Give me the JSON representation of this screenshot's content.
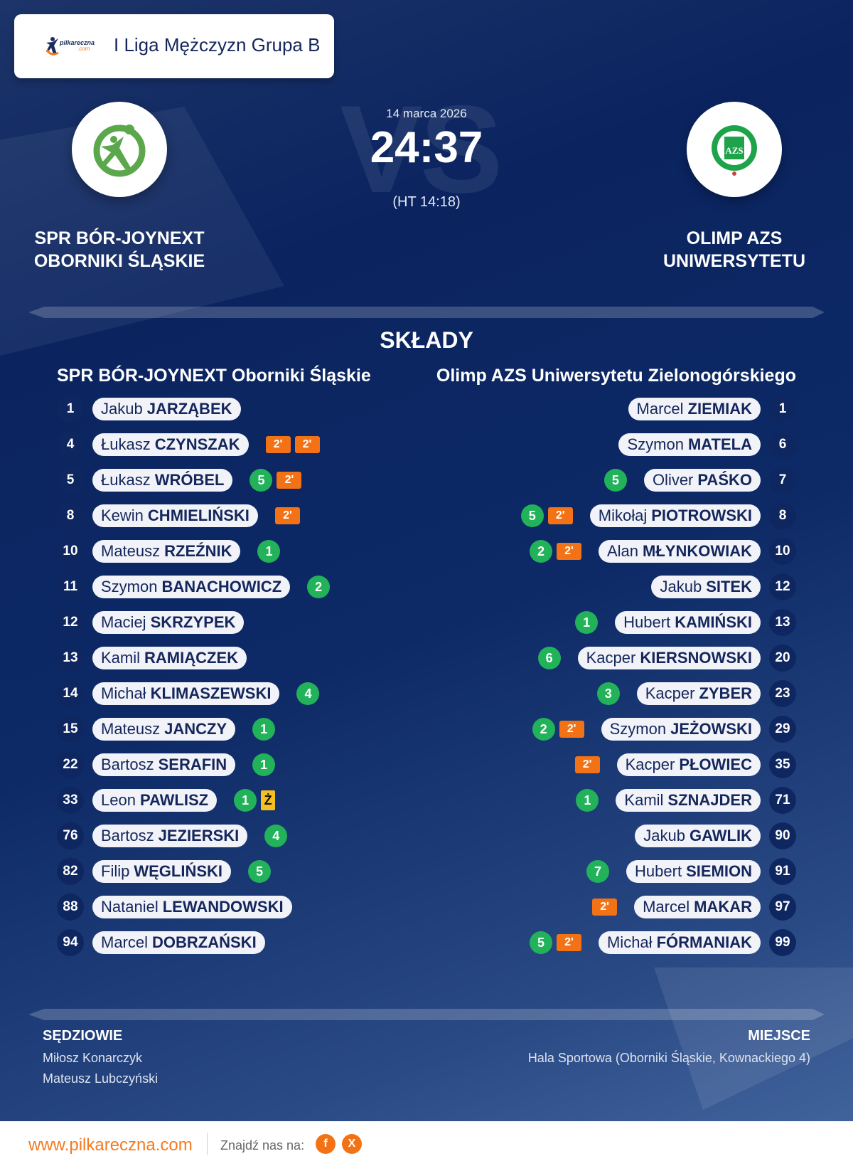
{
  "header": {
    "logo_text": "pilkareczna",
    "logo_suffix": ".com",
    "league": "I Liga Mężczyzn Grupa B"
  },
  "match": {
    "date": "14 marca 2026",
    "score": "24:37",
    "halftime": "(HT 14:18)",
    "vs_watermark": "VS",
    "home": {
      "name_line1": "SPR BÓR-JOYNEXT",
      "name_line2": "OBORNIKI ŚLĄSKIE",
      "crest": "handball-player-crest-green"
    },
    "away": {
      "name_line1": "OLIMP AZS",
      "name_line2": "UNIWERSYTETU",
      "crest": "azs-crest-green"
    }
  },
  "squads": {
    "title": "SKŁADY",
    "home": {
      "team": "SPR BÓR-JOYNEXT Oborniki Śląskie",
      "players": [
        {
          "number": "1",
          "first": "Jakub",
          "last": "JARZĄBEK",
          "badges": []
        },
        {
          "number": "4",
          "first": "Łukasz",
          "last": "CZYNSZAK",
          "badges": [
            {
              "type": "penalty",
              "text": "2'"
            },
            {
              "type": "penalty",
              "text": "2'"
            }
          ]
        },
        {
          "number": "5",
          "first": "Łukasz",
          "last": "WRÓBEL",
          "badges": [
            {
              "type": "goals",
              "text": "5"
            },
            {
              "type": "penalty",
              "text": "2'"
            }
          ]
        },
        {
          "number": "8",
          "first": "Kewin",
          "last": "CHMIELIŃSKI",
          "badges": [
            {
              "type": "penalty",
              "text": "2'"
            }
          ]
        },
        {
          "number": "10",
          "first": "Mateusz",
          "last": "RZEŹNIK",
          "badges": [
            {
              "type": "goals",
              "text": "1"
            }
          ]
        },
        {
          "number": "11",
          "first": "Szymon",
          "last": "BANACHOWICZ",
          "badges": [
            {
              "type": "goals",
              "text": "2"
            }
          ]
        },
        {
          "number": "12",
          "first": "Maciej",
          "last": "SKRZYPEK",
          "badges": []
        },
        {
          "number": "13",
          "first": "Kamil",
          "last": "RAMIĄCZEK",
          "badges": []
        },
        {
          "number": "14",
          "first": "Michał",
          "last": "KLIMASZEWSKI",
          "badges": [
            {
              "type": "goals",
              "text": "4"
            }
          ]
        },
        {
          "number": "15",
          "first": "Mateusz",
          "last": "JANCZY",
          "badges": [
            {
              "type": "goals",
              "text": "1"
            }
          ]
        },
        {
          "number": "22",
          "first": "Bartosz",
          "last": "SERAFIN",
          "badges": [
            {
              "type": "goals",
              "text": "1"
            }
          ]
        },
        {
          "number": "33",
          "first": "Leon",
          "last": "PAWLISZ",
          "badges": [
            {
              "type": "goals",
              "text": "1"
            },
            {
              "type": "yellow",
              "text": "Ż"
            }
          ]
        },
        {
          "number": "76",
          "first": "Bartosz",
          "last": "JEZIERSKI",
          "badges": [
            {
              "type": "goals",
              "text": "4"
            }
          ]
        },
        {
          "number": "82",
          "first": "Filip",
          "last": "WĘGLIŃSKI",
          "badges": [
            {
              "type": "goals",
              "text": "5"
            }
          ]
        },
        {
          "number": "88",
          "first": "Nataniel",
          "last": "LEWANDOWSKI",
          "badges": []
        },
        {
          "number": "94",
          "first": "Marcel",
          "last": "DOBRZAŃSKI",
          "badges": []
        }
      ]
    },
    "away": {
      "team": "Olimp AZS Uniwersytetu Zielonogórskiego",
      "players": [
        {
          "number": "1",
          "first": "Marcel",
          "last": "ZIEMIAK",
          "badges": []
        },
        {
          "number": "6",
          "first": "Szymon",
          "last": "MATELA",
          "badges": []
        },
        {
          "number": "7",
          "first": "Oliver",
          "last": "PAŚKO",
          "badges": [
            {
              "type": "goals",
              "text": "5"
            }
          ]
        },
        {
          "number": "8",
          "first": "Mikołaj",
          "last": "PIOTROWSKI",
          "badges": [
            {
              "type": "goals",
              "text": "5"
            },
            {
              "type": "penalty",
              "text": "2'"
            }
          ]
        },
        {
          "number": "10",
          "first": "Alan",
          "last": "MŁYNKOWIAK",
          "badges": [
            {
              "type": "goals",
              "text": "2"
            },
            {
              "type": "penalty",
              "text": "2'"
            }
          ]
        },
        {
          "number": "12",
          "first": "Jakub",
          "last": "SITEK",
          "badges": []
        },
        {
          "number": "13",
          "first": "Hubert",
          "last": "KAMIŃSKI",
          "badges": [
            {
              "type": "goals",
              "text": "1"
            }
          ]
        },
        {
          "number": "20",
          "first": "Kacper",
          "last": "KIERSNOWSKI",
          "badges": [
            {
              "type": "goals",
              "text": "6"
            }
          ]
        },
        {
          "number": "23",
          "first": "Kacper",
          "last": "ZYBER",
          "badges": [
            {
              "type": "goals",
              "text": "3"
            }
          ]
        },
        {
          "number": "29",
          "first": "Szymon",
          "last": "JEŻOWSKI",
          "badges": [
            {
              "type": "goals",
              "text": "2"
            },
            {
              "type": "penalty",
              "text": "2'"
            }
          ]
        },
        {
          "number": "35",
          "first": "Kacper",
          "last": "PŁOWIEC",
          "badges": [
            {
              "type": "penalty",
              "text": "2'"
            }
          ]
        },
        {
          "number": "71",
          "first": "Kamil",
          "last": "SZNAJDER",
          "badges": [
            {
              "type": "goals",
              "text": "1"
            }
          ]
        },
        {
          "number": "90",
          "first": "Jakub",
          "last": "GAWLIK",
          "badges": []
        },
        {
          "number": "91",
          "first": "Hubert",
          "last": "SIEMION",
          "badges": [
            {
              "type": "goals",
              "text": "7"
            }
          ]
        },
        {
          "number": "97",
          "first": "Marcel",
          "last": "MAKAR",
          "badges": [
            {
              "type": "penalty",
              "text": "2'"
            }
          ]
        },
        {
          "number": "99",
          "first": "Michał",
          "last": "FÓRMANIAK",
          "badges": [
            {
              "type": "goals",
              "text": "5"
            },
            {
              "type": "penalty",
              "text": "2'"
            }
          ]
        }
      ]
    }
  },
  "info": {
    "referees_title": "SĘDZIOWIE",
    "referees": [
      "Miłosz Konarczyk",
      "Mateusz Lubczyński"
    ],
    "venue_title": "MIEJSCE",
    "venue": "Hala Sportowa (Oborniki Śląskie, Kownackiego 4)"
  },
  "footer": {
    "website": "www.pilkareczna.com",
    "find_us": "Znajdź nas na:",
    "facebook": "f",
    "x": "X"
  },
  "colors": {
    "navy": "#0b2460",
    "goal": "#22b25a",
    "penalty": "#f47216",
    "yellow": "#f7c021",
    "accent": "#f47a20"
  }
}
